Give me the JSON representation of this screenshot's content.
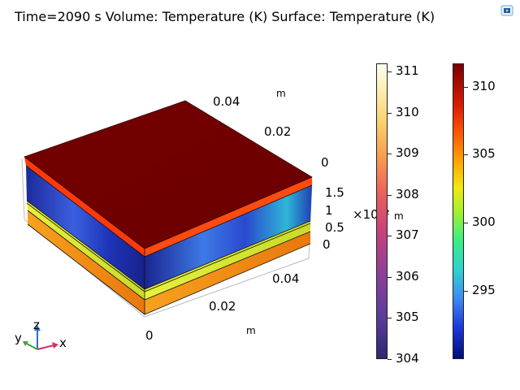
{
  "title": "Time=2090 s  Volume: Temperature (K)  Surface: Temperature (K)",
  "toolbar": {
    "icon": "zoom-extents-icon"
  },
  "axes": {
    "y_axis_ticks": [
      "0.04",
      "0.02",
      "0"
    ],
    "y_axis_unit": "m",
    "z_axis_ticks": [
      "1.5",
      "1",
      "0.5",
      "0"
    ],
    "z_axis_multiplier": "×10⁻²",
    "z_axis_unit": "m",
    "x_axis_ticks": [
      "0.04",
      "0.02",
      "0"
    ],
    "x_axis_unit": "m"
  },
  "triad": {
    "x": "x",
    "y": "y",
    "z": "z"
  },
  "colorbars": {
    "volume": {
      "ticks": [
        "311",
        "310",
        "309",
        "308",
        "307",
        "306",
        "305",
        "304"
      ],
      "min": 304,
      "max": 311.2
    },
    "surface": {
      "ticks": [
        "310",
        "305",
        "300",
        "295"
      ],
      "min": 290,
      "max": 311.7
    }
  },
  "colors": {
    "top_surface": "#6e0000",
    "blue_layer": "#1d2fa6",
    "yellow_layer": "#e3ec3b",
    "orange_layer": "#f29a22"
  }
}
